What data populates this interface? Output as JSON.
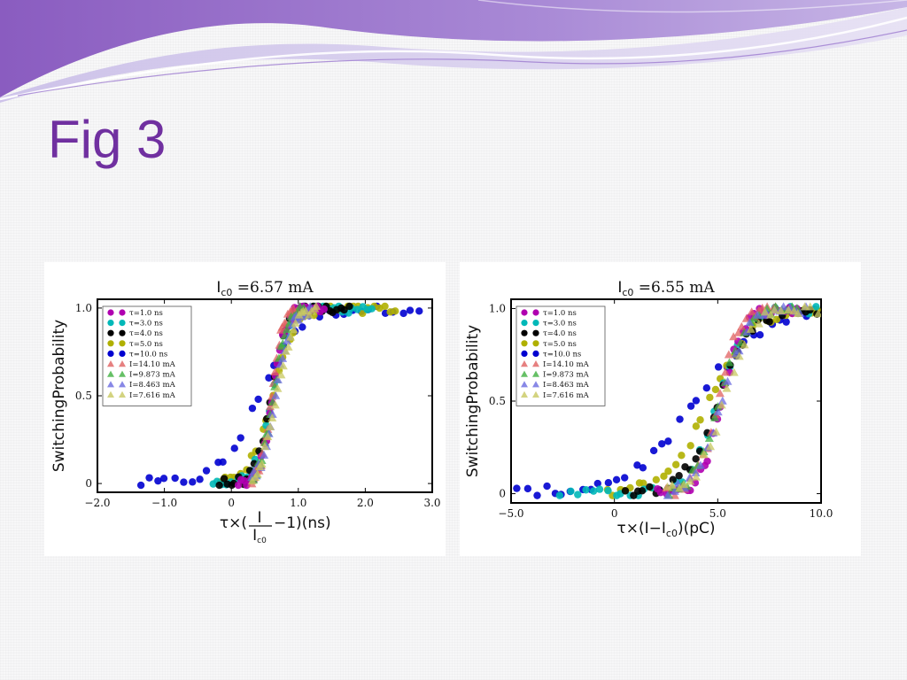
{
  "slide": {
    "title": "Fig 3",
    "accent_color": "#7030a0"
  },
  "chart_data": [
    {
      "type": "scatter",
      "title": "I_c0 = 6.57 mA",
      "title_parts": [
        "I",
        "c0",
        " =6.57 mA"
      ],
      "ylabel": "SwitchingProbability",
      "xlabel": "τ×(I/I_c0 −1)(ns)",
      "xlabel_parts": {
        "tau_prefix": "τ×(",
        "frac_num": "I",
        "frac_den_main": "I",
        "frac_den_sub": "c0",
        "suffix": "−1)(ns)"
      },
      "xlim": [
        -2.0,
        3.0
      ],
      "ylim": [
        -0.05,
        1.05
      ],
      "x_ticks": [
        {
          "v": -2.0,
          "label": "−2.0"
        },
        {
          "v": -1.0,
          "label": "−1.0"
        },
        {
          "v": 0,
          "label": "0"
        },
        {
          "v": 1.0,
          "label": "1.0"
        },
        {
          "v": 2.0,
          "label": "2.0"
        },
        {
          "v": 3.0,
          "label": "3.0"
        }
      ],
      "y_ticks": [
        {
          "v": 0,
          "label": "0"
        },
        {
          "v": 0.5,
          "label": "0.5"
        },
        {
          "v": 1.0,
          "label": "1.0"
        }
      ],
      "legend_position": "top-left",
      "series": [
        {
          "name": "τ=1.0 ns",
          "marker": "circle",
          "color": "#b000b0",
          "center": 0.62,
          "width": 0.09,
          "xmin": 0.1,
          "xmax": 1.4
        },
        {
          "name": "τ=3.0 ns",
          "marker": "circle",
          "color": "#00b8b8",
          "center": 0.6,
          "width": 0.12,
          "xmin": -0.3,
          "xmax": 2.15
        },
        {
          "name": "τ=4.0 ns",
          "marker": "circle",
          "color": "#000000",
          "center": 0.6,
          "width": 0.11,
          "xmin": -0.2,
          "xmax": 1.8
        },
        {
          "name": "τ=5.0 ns",
          "marker": "circle",
          "color": "#b0b000",
          "center": 0.62,
          "width": 0.17,
          "xmin": -0.2,
          "xmax": 2.5
        },
        {
          "name": "τ=10.0 ns",
          "marker": "circle",
          "color": "#0000d0",
          "center": 0.42,
          "width": 0.28,
          "xmin": -1.4,
          "xmax": 2.9
        },
        {
          "name": "I=14.10 mA",
          "marker": "triangle",
          "color": "#e06060",
          "center": 0.6,
          "width": 0.08,
          "xmin": 0.3,
          "xmax": 1.0
        },
        {
          "name": "I=9.873 mA",
          "marker": "triangle",
          "color": "#40b040",
          "center": 0.63,
          "width": 0.1,
          "xmin": 0.3,
          "xmax": 1.1
        },
        {
          "name": "I=8.463 mA",
          "marker": "triangle",
          "color": "#6a6ae0",
          "center": 0.66,
          "width": 0.11,
          "xmin": 0.3,
          "xmax": 1.2
        },
        {
          "name": "I=7.616 mA",
          "marker": "triangle",
          "color": "#c8c860",
          "center": 0.68,
          "width": 0.12,
          "xmin": 0.3,
          "xmax": 1.3
        }
      ]
    },
    {
      "type": "scatter",
      "title": "I_c0 = 6.55 mA",
      "title_parts": [
        "I",
        "c0",
        " =6.55 mA"
      ],
      "ylabel": "SwitchingProbability",
      "xlabel": "τ×(I−I_c0)(pC)",
      "xlabel_parts": {
        "tau_prefix": "τ×(I−I",
        "sub": "c0",
        "suffix": ")(pC)"
      },
      "xlim": [
        -5.0,
        10.0
      ],
      "ylim": [
        -0.05,
        1.05
      ],
      "x_ticks": [
        {
          "v": -5.0,
          "label": "−5.0"
        },
        {
          "v": 0,
          "label": "0"
        },
        {
          "v": 5.0,
          "label": "5.0"
        },
        {
          "v": 10.0,
          "label": "10.0"
        }
      ],
      "y_ticks": [
        {
          "v": 0,
          "label": "0"
        },
        {
          "v": 0.5,
          "label": "0.5"
        },
        {
          "v": 1.0,
          "label": "1.0"
        }
      ],
      "legend_position": "top-left",
      "series": [
        {
          "name": "τ=1.0 ns",
          "marker": "circle",
          "color": "#b000b0",
          "center": 5.2,
          "width": 0.5,
          "xmin": 2.0,
          "xmax": 9.0
        },
        {
          "name": "τ=3.0 ns",
          "marker": "circle",
          "color": "#00b8b8",
          "center": 5.0,
          "width": 0.7,
          "xmin": -2.7,
          "xmax": 10.0
        },
        {
          "name": "τ=4.0 ns",
          "marker": "circle",
          "color": "#000000",
          "center": 5.0,
          "width": 0.8,
          "xmin": 0.5,
          "xmax": 10.0
        },
        {
          "name": "τ=5.0 ns",
          "marker": "circle",
          "color": "#b0b000",
          "center": 4.6,
          "width": 1.0,
          "xmin": -0.5,
          "xmax": 10.0
        },
        {
          "name": "τ=10.0 ns",
          "marker": "circle",
          "color": "#0000d0",
          "center": 4.0,
          "width": 1.6,
          "xmin": -4.8,
          "xmax": 10.0
        },
        {
          "name": "I=14.10 mA",
          "marker": "triangle",
          "color": "#e06060",
          "center": 5.0,
          "width": 0.5,
          "xmin": 2.5,
          "xmax": 8.0
        },
        {
          "name": "I=9.873 mA",
          "marker": "triangle",
          "color": "#40b040",
          "center": 5.1,
          "width": 0.6,
          "xmin": 2.5,
          "xmax": 9.0
        },
        {
          "name": "I=8.463 mA",
          "marker": "triangle",
          "color": "#6a6ae0",
          "center": 5.2,
          "width": 0.6,
          "xmin": 2.5,
          "xmax": 9.5
        },
        {
          "name": "I=7.616 mA",
          "marker": "triangle",
          "color": "#c8c860",
          "center": 5.3,
          "width": 0.65,
          "xmin": 2.5,
          "xmax": 10.0
        }
      ]
    }
  ]
}
